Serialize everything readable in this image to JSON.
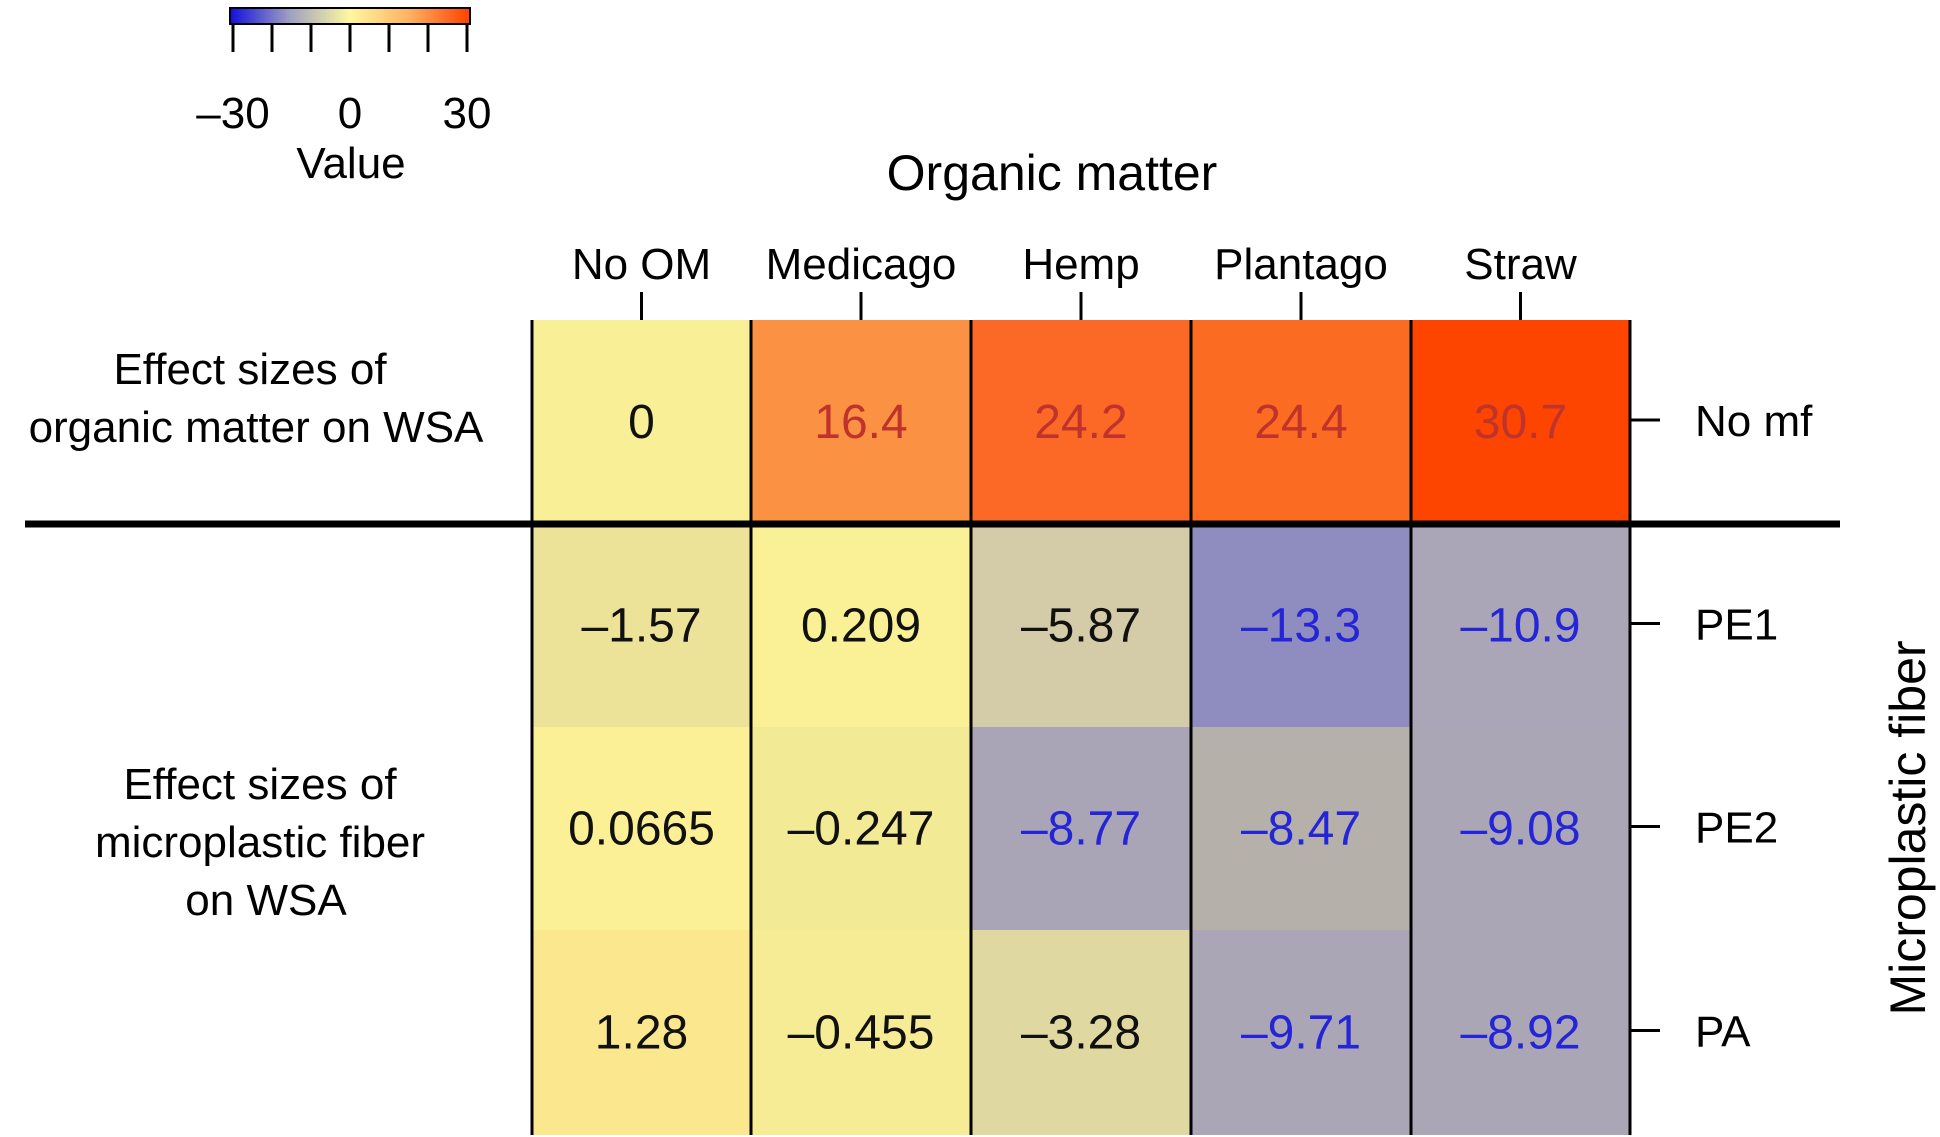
{
  "chart_data": {
    "type": "heatmap",
    "title": "Organic matter",
    "x_title": "Organic matter",
    "y_title": "Microplastic fiber",
    "columns": [
      "No OM",
      "Medicago",
      "Hemp",
      "Plantago",
      "Straw"
    ],
    "rows": [
      "No mf",
      "PE1",
      "PE2",
      "PA"
    ],
    "cell_labels": [
      [
        "0",
        "16.4",
        "24.2",
        "24.4",
        "30.7"
      ],
      [
        "–1.57",
        "0.209",
        "–5.87",
        "–13.3",
        "–10.9"
      ],
      [
        "0.0665",
        "–0.247",
        "–8.77",
        "–8.47",
        "–9.08"
      ],
      [
        "1.28",
        "–0.455",
        "–3.28",
        "–9.71",
        "–8.92"
      ]
    ],
    "values": [
      [
        0,
        16.4,
        24.2,
        24.4,
        30.7
      ],
      [
        -1.57,
        0.209,
        -5.87,
        -13.3,
        -10.9
      ],
      [
        0.0665,
        -0.247,
        -8.77,
        -8.47,
        -9.08
      ],
      [
        1.28,
        -0.455,
        -3.28,
        -9.71,
        -8.92
      ]
    ],
    "cell_colors": [
      [
        "#f9ef96",
        "#fb9142",
        "#fc6825",
        "#fc6b22",
        "#fd4500"
      ],
      [
        "#ece398",
        "#faf096",
        "#d4cba8",
        "#8f8cc0",
        "#aba6b7"
      ],
      [
        "#fbf096",
        "#f3ea96",
        "#aaa5b6",
        "#b5b0a9",
        "#aba6b6"
      ],
      [
        "#fbe88e",
        "#f5ec95",
        "#e0d8a1",
        "#aba6b6",
        "#aba6b6"
      ]
    ],
    "label_colors": [
      [
        "#111111",
        "#c0332c",
        "#c0332c",
        "#c0332c",
        "#c0332c"
      ],
      [
        "#111111",
        "#111111",
        "#111111",
        "#2525d8",
        "#2525d8"
      ],
      [
        "#111111",
        "#111111",
        "#2525d8",
        "#2525d8",
        "#2525d8"
      ],
      [
        "#111111",
        "#111111",
        "#111111",
        "#2525d8",
        "#2525d8"
      ]
    ],
    "left_labels": {
      "organic": [
        "Effect sizes of",
        "organic matter on WSA"
      ],
      "fiber": [
        "Effect sizes of",
        "microplastic fiber",
        "on WSA"
      ]
    },
    "colorbar": {
      "title": "Value",
      "range": [
        -30,
        30
      ],
      "tick_labels": [
        "–30",
        "0",
        "30"
      ],
      "tick_values": [
        -30,
        0,
        30
      ],
      "minor_ticks": [
        -30,
        -20,
        -10,
        0,
        10,
        20,
        30
      ],
      "colors": [
        "#1010e0",
        "#a0a0c0",
        "#fff8a0",
        "#ffb060",
        "#ff4000"
      ]
    }
  }
}
